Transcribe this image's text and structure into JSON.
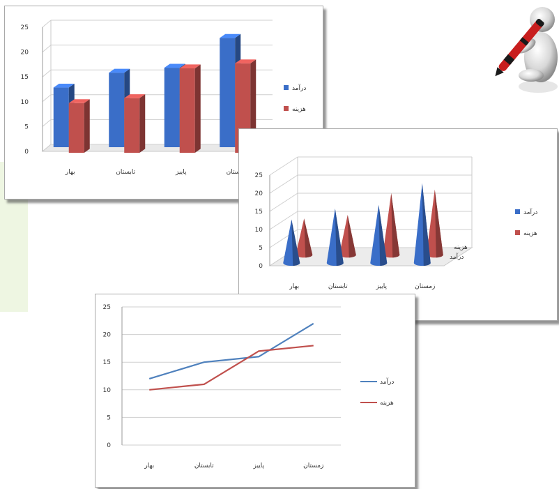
{
  "chart_data": [
    {
      "type": "bar",
      "style": "3d-column",
      "categories": [
        "بهار",
        "تابستان",
        "پاییز",
        "زمستان"
      ],
      "series": [
        {
          "name": "درآمد",
          "color": "#3a6ec8",
          "values": [
            12,
            15,
            16,
            22
          ]
        },
        {
          "name": "هزینه",
          "color": "#c0504d",
          "values": [
            10,
            11,
            17,
            18
          ]
        }
      ],
      "ylim": [
        0,
        25
      ],
      "yticks": [
        "0",
        "5",
        "10",
        "15",
        "20",
        "25"
      ],
      "grid": true,
      "legend": "right"
    },
    {
      "type": "bar",
      "style": "3d-cone",
      "categories": [
        "بهار",
        "تابستان",
        "پاییز",
        "زمستان"
      ],
      "series": [
        {
          "name": "درآمد",
          "color": "#3a6ec8",
          "values": [
            12,
            15,
            16,
            22
          ]
        },
        {
          "name": "هزینه",
          "color": "#c0504d",
          "values": [
            10,
            11,
            17,
            18
          ]
        }
      ],
      "ylim": [
        0,
        25
      ],
      "yticks": [
        "0",
        "5",
        "10",
        "15",
        "20",
        "25"
      ],
      "depth_labels": [
        "هزینه",
        "درآمد"
      ],
      "grid": true,
      "legend": "right"
    },
    {
      "type": "line",
      "categories": [
        "بهار",
        "تابستان",
        "پاییز",
        "زمستان"
      ],
      "series": [
        {
          "name": "درآمد",
          "color": "#4f81bd",
          "values": [
            12,
            15,
            16,
            22
          ]
        },
        {
          "name": "هزینه",
          "color": "#c0504d",
          "values": [
            10,
            11,
            17,
            18
          ]
        }
      ],
      "ylim": [
        0,
        25
      ],
      "yticks": [
        "0",
        "5",
        "10",
        "15",
        "20",
        "25"
      ],
      "grid": true,
      "legend": "right"
    }
  ],
  "decoration": {
    "icon": "figure-with-pen-icon"
  }
}
